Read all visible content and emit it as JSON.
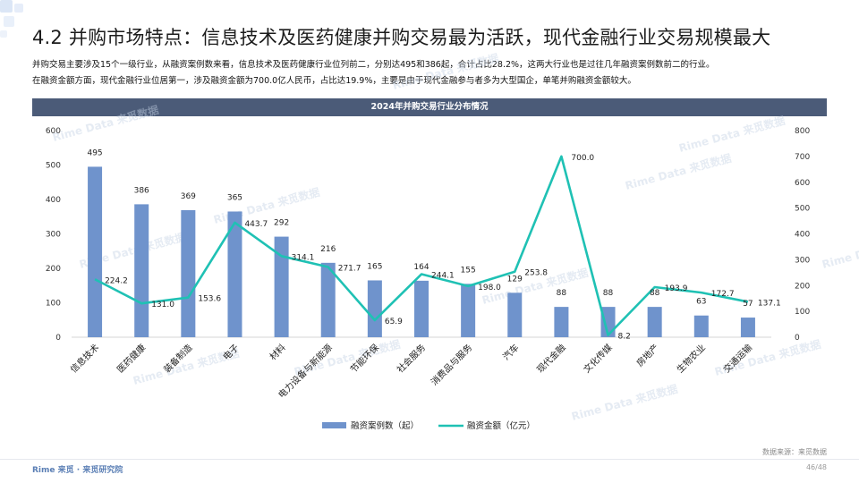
{
  "slide": {
    "title": "4.2 并购市场特点：信息技术及医药健康并购交易最为活跃，现代金融行业交易规模最大",
    "desc_line1": "并购交易主要涉及15个一级行业，从融资案例数来看，信息技术及医药健康行业位列前二，分别达495和386起，合计占比28.2%，这两大行业也是过往几年融资案例数前二的行业。",
    "desc_line2": "在融资金额方面，现代金融行业位居第一，涉及融资金额为700.0亿人民币，占比达19.9%，主要是由于现代金融参与者多为大型国企，单笔并购融资金额较大。",
    "source": "数据来源：来觅数据",
    "logo": "Rime 来觅 · 来觅研究院",
    "page": "46/48",
    "watermark": "Rime Data 来觅数据"
  },
  "colors": {
    "bar": "#6f93cc",
    "line": "#1fc1b4",
    "banner": "#4b5b78"
  },
  "chart_data": {
    "type": "bar",
    "title": "2024年并购交易行业分布情况",
    "categories": [
      "信息技术",
      "医药健康",
      "装备制造",
      "电子",
      "材料",
      "电力设备与新能源",
      "节能环保",
      "社会服务",
      "消费品与服务",
      "汽车",
      "现代金融",
      "文化传媒",
      "房地产",
      "生物农业",
      "交通运输"
    ],
    "series": [
      {
        "name": "融资案例数（起）",
        "type": "bar",
        "axis": "left",
        "values": [
          495,
          386,
          369,
          365,
          292,
          216,
          165,
          164,
          155,
          129,
          88,
          88,
          88,
          63,
          57
        ]
      },
      {
        "name": "融资金额（亿元）",
        "type": "line",
        "axis": "right",
        "values": [
          224.2,
          131.0,
          153.6,
          443.7,
          314.1,
          271.7,
          65.9,
          244.1,
          198.0,
          253.8,
          700.0,
          8.2,
          193.9,
          172.7,
          137.1
        ]
      }
    ],
    "y_left": {
      "min": 0,
      "max": 600,
      "ticks": [
        0,
        100,
        200,
        300,
        400,
        500,
        600
      ]
    },
    "y_right": {
      "min": 0,
      "max": 800,
      "ticks": [
        0,
        100,
        200,
        300,
        400,
        500,
        600,
        700,
        800
      ]
    },
    "legend_position": "bottom",
    "grid": false
  }
}
